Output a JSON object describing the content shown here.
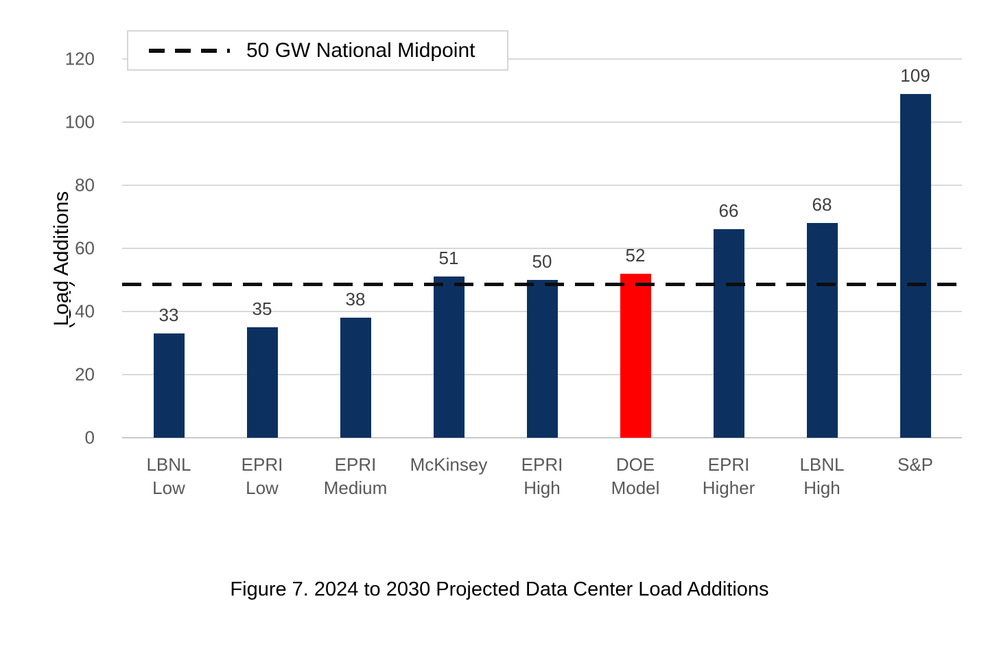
{
  "chart_data": {
    "type": "bar",
    "categories": [
      [
        "LBNL",
        "Low"
      ],
      [
        "EPRI",
        "Low"
      ],
      [
        "EPRI",
        "Medium"
      ],
      [
        "McKinsey"
      ],
      [
        "EPRI",
        "High"
      ],
      [
        "DOE",
        "Model"
      ],
      [
        "EPRI",
        "Higher"
      ],
      [
        "LBNL",
        "High"
      ],
      [
        "S&P"
      ]
    ],
    "values": [
      33,
      35,
      38,
      51,
      50,
      52,
      66,
      68,
      109
    ],
    "highlighted_category": "DOE Model",
    "highlight_index": 5,
    "ylabel": "Load Additions",
    "ylabel_unit": "(GW)",
    "yticks": [
      0,
      20,
      40,
      60,
      80,
      100,
      120
    ],
    "ylim": [
      0,
      120
    ],
    "grid": true,
    "legend_position": "top-left",
    "reference_line": {
      "value": 50,
      "style": "dashed",
      "label": "50 GW National Midpoint"
    }
  },
  "legend": {
    "label": "50 GW National Midpoint"
  },
  "caption": "Figure 7. 2024 to 2030 Projected Data Center Load Additions",
  "colors": {
    "bar": "#0c3161",
    "highlight": "#ff0000",
    "gridline": "#d9d9d9",
    "tick_text": "#595959",
    "value_label_text": "#3f3f3f",
    "reference_line": "#000000",
    "axis_title_text": "#000000"
  }
}
